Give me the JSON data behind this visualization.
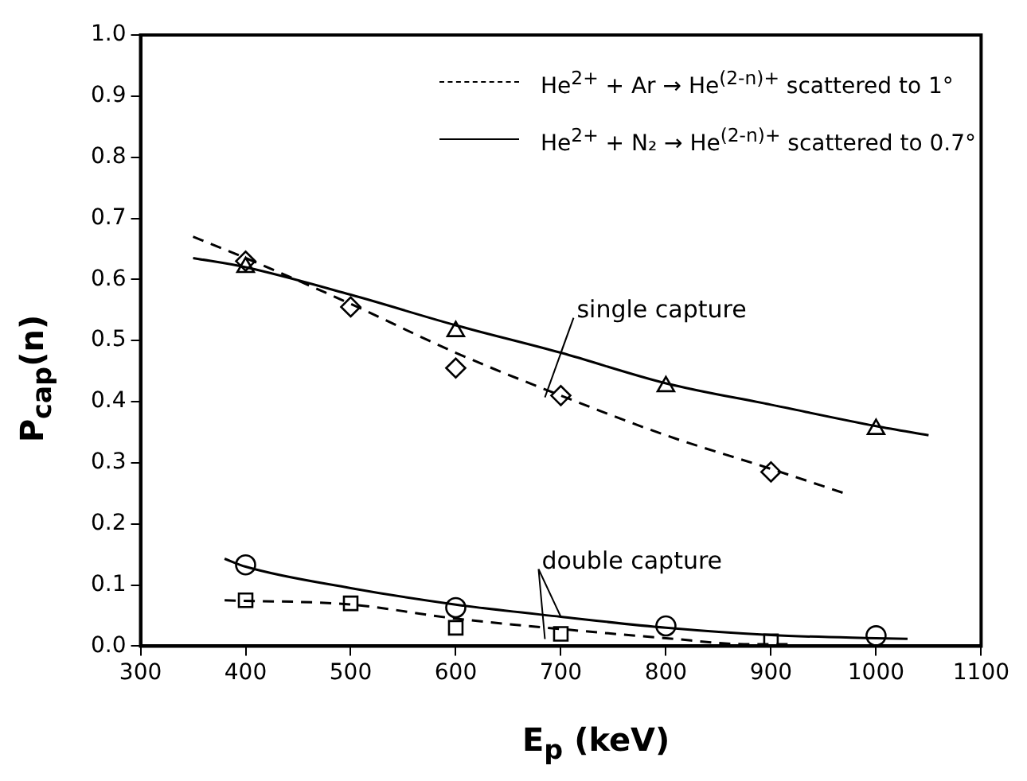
{
  "chart_data": {
    "type": "scatter",
    "xlabel": "E$_{p}$ (keV)",
    "ylabel": "P$_{cap}$(n)",
    "xlim": [
      300,
      1100
    ],
    "xticks": [
      300,
      400,
      500,
      600,
      700,
      800,
      900,
      1000,
      1100
    ],
    "ylim": [
      0,
      1
    ],
    "yticks": [
      {
        "value": 0,
        "label": "0.0"
      },
      {
        "value": 0.1,
        "label": "0.1"
      },
      {
        "value": 0.2,
        "label": "0.2"
      },
      {
        "value": 0.3,
        "label": "0.3"
      },
      {
        "value": 0.4,
        "label": "0.4"
      },
      {
        "value": 0.5,
        "label": "0.5"
      },
      {
        "value": 0.6,
        "label": "0.6"
      },
      {
        "value": 0.7,
        "label": "0.7"
      },
      {
        "value": 0.8,
        "label": "0.8"
      },
      {
        "value": 0.9,
        "label": "0.9"
      },
      {
        "value": 1,
        "label": "1.0"
      }
    ],
    "grid": false,
    "legend": "top right",
    "series": [
      {
        "name": "He$^{2+}$ + Ar → He$^{(2-n)+}$ scattered to 1°",
        "type": "line",
        "color": "#000000",
        "marker": "none",
        "line_style": "dashed",
        "x": [
          350,
          400,
          500,
          600,
          700,
          800,
          900,
          970
        ],
        "values": [
          0.67,
          0.635,
          0.56,
          0.48,
          0.41,
          0.345,
          0.29,
          0.25
        ]
      },
      {
        "name": "He$^{2+}$ + N₂ → He$^{(2-n)+}$ scattered to 0.7°",
        "type": "line",
        "color": "#000000",
        "marker": "none",
        "line_style": "solid",
        "x": [
          350,
          400,
          500,
          600,
          700,
          800,
          900,
          1000,
          1050
        ],
        "values": [
          0.635,
          0.62,
          0.575,
          0.525,
          0.48,
          0.43,
          0.395,
          0.36,
          0.345
        ]
      },
      {
        "type": "line",
        "color": "#000000",
        "marker": "none",
        "line_style": "solid",
        "x": [
          380,
          400,
          500,
          600,
          700,
          800,
          900,
          1000,
          1030
        ],
        "values": [
          0.143,
          0.13,
          0.095,
          0.068,
          0.048,
          0.03,
          0.018,
          0.013,
          0.012
        ]
      },
      {
        "type": "line",
        "color": "#000000",
        "marker": "none",
        "line_style": "dashed",
        "x": [
          380,
          500,
          600,
          700,
          800,
          880,
          920
        ],
        "values": [
          0.075,
          0.068,
          0.045,
          0.028,
          0.013,
          0.003,
          0.003
        ]
      },
      {
        "type": "scatter",
        "color": "#000000",
        "marker": "diamond",
        "x": [
          400,
          500,
          600,
          700,
          900
        ],
        "values": [
          0.63,
          0.555,
          0.455,
          0.41,
          0.285
        ]
      },
      {
        "type": "scatter",
        "color": "#000000",
        "marker": "triangle",
        "x": [
          400,
          600,
          800,
          1000
        ],
        "values": [
          0.62,
          0.515,
          0.425,
          0.355
        ]
      },
      {
        "type": "scatter",
        "color": "#000000",
        "marker": "circle",
        "x": [
          400,
          600,
          800,
          1000
        ],
        "values": [
          0.133,
          0.063,
          0.033,
          0.017
        ]
      },
      {
        "type": "scatter",
        "color": "#000000",
        "marker": "square",
        "x": [
          400,
          500,
          600,
          700,
          900
        ],
        "values": [
          0.075,
          0.07,
          0.03,
          0.02,
          0.008
        ]
      }
    ],
    "annotations": [
      {
        "text": "single capture",
        "x": 700,
        "y": 0.48
      },
      {
        "text": "double capture",
        "x": 700,
        "y": 0.048
      }
    ]
  }
}
